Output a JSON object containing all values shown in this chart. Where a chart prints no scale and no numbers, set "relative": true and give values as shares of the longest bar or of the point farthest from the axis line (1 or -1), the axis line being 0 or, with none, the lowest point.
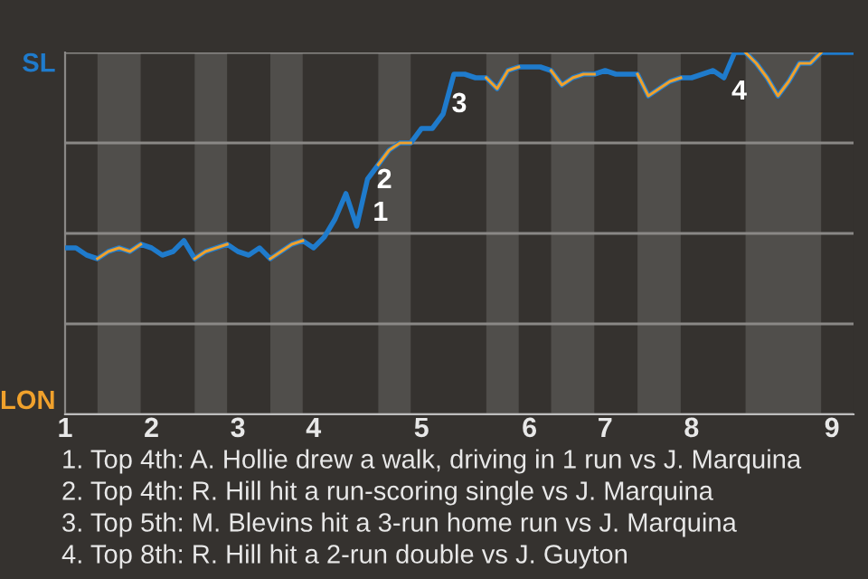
{
  "chart_data": {
    "type": "line",
    "relative": true,
    "categories": [
      "1",
      null,
      null,
      null,
      null,
      null,
      null,
      null,
      "2",
      null,
      null,
      null,
      null,
      null,
      null,
      null,
      "3",
      null,
      null,
      null,
      null,
      null,
      null,
      "4",
      null,
      null,
      null,
      null,
      null,
      null,
      null,
      null,
      null,
      "5",
      null,
      null,
      null,
      null,
      null,
      null,
      null,
      null,
      null,
      "6",
      null,
      null,
      null,
      null,
      null,
      null,
      "7",
      null,
      null,
      null,
      null,
      null,
      null,
      null,
      "8",
      null,
      null,
      null,
      null,
      null,
      null,
      null,
      null,
      null,
      null,
      null,
      null,
      "9",
      null,
      null
    ],
    "series": [
      {
        "name": "SL",
        "color": "#1f7bcc",
        "values": [
          0.46,
          0.46,
          0.44,
          0.43,
          0.45,
          0.46,
          0.45,
          0.47,
          0.46,
          0.44,
          0.45,
          0.48,
          0.43,
          0.45,
          0.46,
          0.47,
          0.45,
          0.44,
          0.46,
          0.43,
          0.45,
          0.47,
          0.48,
          0.46,
          0.49,
          0.54,
          0.61,
          0.52,
          0.65,
          0.69,
          0.73,
          0.75,
          0.75,
          0.79,
          0.79,
          0.83,
          0.94,
          0.94,
          0.93,
          0.93,
          0.9,
          0.95,
          0.96,
          0.96,
          0.96,
          0.95,
          0.91,
          0.93,
          0.94,
          0.94,
          0.95,
          0.94,
          0.94,
          0.94,
          0.88,
          0.9,
          0.92,
          0.93,
          0.93,
          0.94,
          0.95,
          0.93,
          1,
          1,
          0.97,
          0.93,
          0.88,
          0.92,
          0.97,
          0.97,
          1,
          1,
          1,
          1
        ]
      },
      {
        "name": "LON",
        "color": "#f0a12c",
        "values": [
          null,
          null,
          null,
          0.43,
          0.45,
          0.46,
          0.45,
          0.47,
          null,
          null,
          null,
          null,
          0.43,
          0.45,
          0.46,
          0.47,
          null,
          null,
          null,
          0.43,
          0.45,
          0.47,
          0.48,
          null,
          null,
          null,
          null,
          null,
          null,
          0.69,
          0.73,
          0.75,
          0.75,
          null,
          null,
          null,
          null,
          null,
          null,
          0.93,
          0.9,
          0.95,
          0.96,
          null,
          null,
          0.95,
          0.91,
          0.93,
          0.94,
          0.94,
          null,
          null,
          null,
          0.94,
          0.88,
          0.9,
          0.92,
          0.93,
          null,
          null,
          null,
          null,
          null,
          1,
          0.97,
          0.93,
          0.88,
          0.92,
          0.97,
          0.97,
          1,
          null,
          null,
          null
        ]
      }
    ],
    "grid": "y",
    "annotations": [
      "1",
      "2",
      "3",
      "4",
      "1. Top 4th: A. Hollie drew a walk, driving in 1 run vs J. Marquina",
      "2. Top 4th: R. Hill hit a run-scoring single vs J. Marquina",
      "3. Top 5th: M. Blevins hit a 3-run home run vs J. Marquina",
      "4. Top 8th: R. Hill hit a 2-run double vs J. Guyton"
    ]
  }
}
